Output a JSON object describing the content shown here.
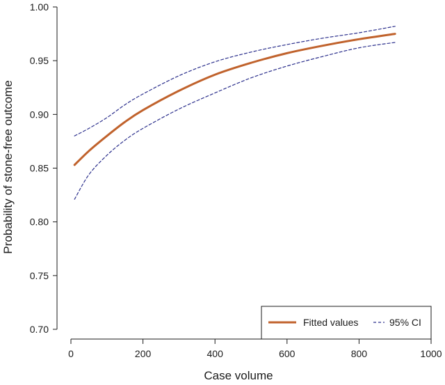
{
  "chart_data": {
    "type": "line",
    "title": "",
    "xlabel": "Case volume",
    "ylabel": "Probability of stone-free outcome",
    "xlim": [
      0,
      1000
    ],
    "ylim": [
      0.7,
      1.0
    ],
    "x_ticks": [
      0,
      200,
      400,
      600,
      800,
      1000
    ],
    "y_ticks": [
      "0.70",
      "0.75",
      "0.80",
      "0.85",
      "0.90",
      "0.95",
      "1.00"
    ],
    "grid": false,
    "legend_position": "bottom-right",
    "series": [
      {
        "name": "Fitted values",
        "style": "solid",
        "color": "#c0622c",
        "x": [
          10,
          50,
          100,
          150,
          200,
          300,
          400,
          500,
          600,
          700,
          800,
          900
        ],
        "y": [
          0.853,
          0.866,
          0.88,
          0.893,
          0.904,
          0.922,
          0.937,
          0.948,
          0.957,
          0.964,
          0.97,
          0.975
        ]
      },
      {
        "name": "95% CI",
        "style": "dashed",
        "color": "#2b2f8c",
        "x": [
          10,
          50,
          100,
          150,
          200,
          300,
          400,
          500,
          600,
          700,
          800,
          900
        ],
        "y": [
          0.88,
          0.887,
          0.897,
          0.909,
          0.919,
          0.936,
          0.949,
          0.958,
          0.965,
          0.971,
          0.976,
          0.982
        ]
      },
      {
        "name": "",
        "style": "dashed",
        "color": "#2b2f8c",
        "x": [
          10,
          50,
          100,
          150,
          200,
          300,
          400,
          500,
          600,
          700,
          800,
          900
        ],
        "y": [
          0.821,
          0.844,
          0.862,
          0.876,
          0.887,
          0.905,
          0.92,
          0.934,
          0.945,
          0.954,
          0.962,
          0.967
        ]
      }
    ]
  }
}
